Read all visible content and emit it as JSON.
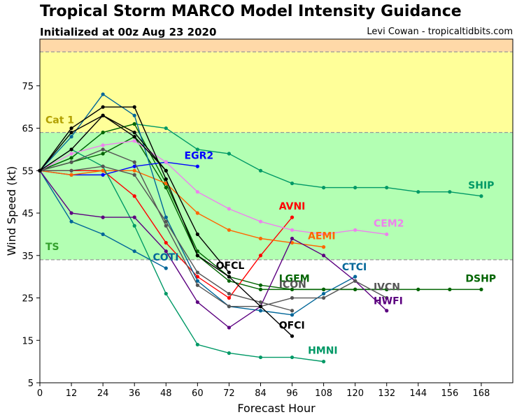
{
  "header": {
    "title": "Tropical Storm MARCO Model Intensity Guidance",
    "subtitle": "Initialized at 00z Aug 23 2020",
    "credit": "Levi Cowan - tropicaltidbits.com"
  },
  "chart_data": {
    "type": "line",
    "title": "Tropical Storm MARCO Model Intensity Guidance",
    "subtitle": "Initialized at 00z Aug 23 2020",
    "xlabel": "Forecast Hour",
    "ylabel": "Wind Speed (kt)",
    "xlim": [
      0,
      180
    ],
    "ylim": [
      5,
      86
    ],
    "xticks": [
      0,
      12,
      24,
      36,
      48,
      60,
      72,
      84,
      96,
      108,
      120,
      132,
      144,
      156,
      168
    ],
    "yticks": [
      5,
      15,
      25,
      35,
      45,
      55,
      65,
      75
    ],
    "bands": [
      {
        "label": "TS",
        "from": 34,
        "to": 64,
        "color": "#b3ffb3",
        "label_color": "#33a02c"
      },
      {
        "label": "Cat 1",
        "from": 64,
        "to": 83,
        "color": "#ffff99",
        "label_color": "#b2a000"
      },
      {
        "label": "",
        "from": 83,
        "to": 86,
        "color": "#ffd9a8",
        "label_color": "#000000"
      }
    ],
    "series": [
      {
        "name": "SHIP",
        "color": "#009966",
        "x": [
          0,
          12,
          24,
          36,
          48,
          60,
          72,
          84,
          96,
          108,
          120,
          132,
          144,
          156,
          168
        ],
        "y": [
          55,
          58,
          64,
          66,
          65,
          60,
          59,
          55,
          52,
          51,
          51,
          51,
          50,
          50,
          49
        ]
      },
      {
        "name": "DSHP",
        "color": "#006400",
        "x": [
          0,
          12,
          24,
          36,
          48,
          60,
          72,
          84,
          96,
          108,
          120,
          132,
          144,
          156,
          168
        ],
        "y": [
          55,
          58,
          64,
          66,
          52,
          36,
          30,
          28,
          27,
          27,
          27,
          27,
          27,
          27,
          27
        ]
      },
      {
        "name": "LGEM",
        "color": "#006400",
        "x": [
          0,
          12,
          24,
          36,
          48,
          60,
          72,
          84,
          96,
          108,
          120,
          132
        ],
        "y": [
          55,
          57,
          59,
          63,
          51,
          35,
          29,
          27,
          27,
          27,
          27,
          27
        ]
      },
      {
        "name": "EGR2",
        "color": "#0000ff",
        "x": [
          0,
          12,
          24,
          36,
          48,
          60
        ],
        "y": [
          55,
          54,
          54,
          56,
          57,
          56
        ]
      },
      {
        "name": "AVNI",
        "color": "#ff0000",
        "x": [
          0,
          12,
          24,
          36,
          48,
          60,
          72,
          84,
          96
        ],
        "y": [
          55,
          55,
          55,
          49,
          38,
          30,
          25,
          35,
          44
        ]
      },
      {
        "name": "AEMI",
        "color": "#ff6600",
        "x": [
          0,
          12,
          24,
          36,
          48,
          60,
          72,
          84,
          96,
          108
        ],
        "y": [
          55,
          54,
          55,
          55,
          52,
          45,
          41,
          39,
          38,
          37
        ]
      },
      {
        "name": "CEM2",
        "color": "#ee82ee",
        "x": [
          0,
          12,
          24,
          36,
          48,
          60,
          72,
          84,
          96,
          108,
          120,
          132
        ],
        "y": [
          55,
          59,
          61,
          62,
          57,
          50,
          46,
          43,
          41,
          40,
          41,
          40
        ]
      },
      {
        "name": "COTI",
        "color": "#006699",
        "x": [
          0,
          12,
          24,
          36,
          48
        ],
        "y": [
          55,
          43,
          40,
          36,
          32
        ]
      },
      {
        "name": "CTCI",
        "color": "#006699",
        "x": [
          0,
          12,
          24,
          36,
          48,
          60,
          72,
          84,
          96,
          108,
          120
        ],
        "y": [
          55,
          63,
          73,
          68,
          44,
          29,
          23,
          22,
          21,
          26,
          30
        ]
      },
      {
        "name": "HMNI",
        "color": "#009966",
        "x": [
          0,
          12,
          24,
          36,
          48,
          60,
          72,
          84,
          96,
          108
        ],
        "y": [
          55,
          60,
          56,
          42,
          26,
          14,
          12,
          11,
          11,
          10
        ]
      },
      {
        "name": "HWFI",
        "color": "#5c0080",
        "x": [
          0,
          12,
          24,
          36,
          48,
          60,
          72,
          84,
          96,
          108,
          120,
          132
        ],
        "y": [
          55,
          45,
          44,
          44,
          36,
          24,
          18,
          23,
          39,
          35,
          29,
          22
        ]
      },
      {
        "name": "IVCN",
        "color": "#555555",
        "x": [
          0,
          12,
          24,
          36,
          48,
          60,
          72,
          84,
          96,
          108,
          120,
          132
        ],
        "y": [
          55,
          57,
          60,
          57,
          42,
          28,
          23,
          23,
          25,
          25,
          29,
          25
        ]
      },
      {
        "name": "",
        "color": "#555555",
        "x": [
          0,
          12,
          24,
          36,
          48,
          60,
          72,
          84,
          96
        ],
        "y": [
          55,
          55,
          56,
          54,
          43,
          31,
          26,
          24,
          22
        ]
      },
      {
        "name": "OFCL",
        "color": "#000000",
        "x": [
          0,
          12,
          24,
          36,
          48,
          60,
          72
        ],
        "y": [
          55,
          64,
          68,
          64,
          55,
          40,
          31
        ]
      },
      {
        "name": "OFCI",
        "color": "#000000",
        "x": [
          0,
          12,
          24,
          36,
          48,
          60,
          72,
          84,
          96
        ],
        "y": [
          55,
          65,
          70,
          70,
          53,
          35,
          30,
          23,
          16
        ]
      },
      {
        "name": "",
        "color": "#000000",
        "x": [
          0,
          12,
          24,
          36,
          48
        ],
        "y": [
          55,
          60,
          68,
          63,
          55
        ]
      }
    ],
    "annotations": [
      {
        "text": "SHIP",
        "x": 163,
        "y": 50.8,
        "color": "#009966"
      },
      {
        "text": "DSHP",
        "x": 162,
        "y": 28.8,
        "color": "#006400"
      },
      {
        "text": "LGEM",
        "x": 91,
        "y": 28.8,
        "color": "#006400"
      },
      {
        "text": "ICON",
        "x": 91,
        "y": 27.4,
        "color": "#555555"
      },
      {
        "text": "EGR2",
        "x": 55,
        "y": 57.8,
        "color": "#0000ff"
      },
      {
        "text": "AVNI",
        "x": 91,
        "y": 45.8,
        "color": "#ff0000"
      },
      {
        "text": "AEMI",
        "x": 102,
        "y": 38.8,
        "color": "#ff6600"
      },
      {
        "text": "CEM2",
        "x": 127,
        "y": 41.8,
        "color": "#ee82ee"
      },
      {
        "text": "COTI",
        "x": 43,
        "y": 33.8,
        "color": "#006699"
      },
      {
        "text": "CTCI",
        "x": 115,
        "y": 31.5,
        "color": "#006699"
      },
      {
        "text": "HMNI",
        "x": 102,
        "y": 11.8,
        "color": "#009966"
      },
      {
        "text": "HWFI",
        "x": 127,
        "y": 23.5,
        "color": "#5c0080"
      },
      {
        "text": "IVCN",
        "x": 127,
        "y": 26.8,
        "color": "#555555"
      },
      {
        "text": "OFCL",
        "x": 67,
        "y": 31.8,
        "color": "#000000"
      },
      {
        "text": "OFCI",
        "x": 91,
        "y": 17.8,
        "color": "#000000"
      }
    ]
  }
}
